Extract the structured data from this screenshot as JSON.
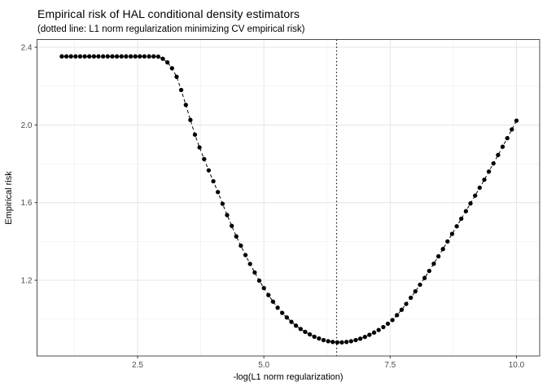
{
  "chart_data": {
    "type": "scatter",
    "title": "Empirical risk of HAL conditional density estimators",
    "subtitle": "(dotted line: L1 norm regularization minimizing CV empirical risk)",
    "xlabel": "-log(L1 norm regularization)",
    "ylabel": "Empirical risk",
    "xlim": [
      0.51,
      10.46
    ],
    "ylim": [
      0.81,
      2.44
    ],
    "x_ticks": {
      "major": [
        2.5,
        5.0,
        7.5,
        10.0
      ],
      "labels": [
        "2.5",
        "5.0",
        "7.5",
        "10.0"
      ],
      "minor": [
        1.25,
        3.75,
        6.25,
        8.75
      ]
    },
    "y_ticks": {
      "major": [
        2.4,
        2.0,
        1.6,
        1.2
      ],
      "labels": [
        "2.4",
        "2.0",
        "1.6",
        "1.2"
      ],
      "minor": [
        2.2,
        1.8,
        1.4,
        1.0
      ]
    },
    "grid": true,
    "legend": "none",
    "line_style": "dashed",
    "point_shape": "filled-circle",
    "vline": {
      "x": 6.44,
      "style": "dotted"
    },
    "series": [
      {
        "name": "empirical risk",
        "x": [
          1.0,
          1.091,
          1.182,
          1.273,
          1.364,
          1.455,
          1.545,
          1.636,
          1.727,
          1.818,
          1.909,
          2.0,
          2.091,
          2.182,
          2.273,
          2.364,
          2.455,
          2.545,
          2.636,
          2.727,
          2.818,
          2.909,
          3.0,
          3.091,
          3.182,
          3.273,
          3.364,
          3.455,
          3.545,
          3.636,
          3.727,
          3.818,
          3.909,
          4.0,
          4.091,
          4.182,
          4.273,
          4.364,
          4.455,
          4.545,
          4.636,
          4.727,
          4.818,
          4.909,
          5.0,
          5.091,
          5.182,
          5.273,
          5.364,
          5.455,
          5.545,
          5.636,
          5.727,
          5.818,
          5.909,
          6.0,
          6.091,
          6.182,
          6.273,
          6.364,
          6.455,
          6.545,
          6.636,
          6.727,
          6.818,
          6.909,
          7.0,
          7.091,
          7.182,
          7.273,
          7.364,
          7.455,
          7.545,
          7.636,
          7.727,
          7.818,
          7.909,
          8.0,
          8.091,
          8.182,
          8.273,
          8.364,
          8.455,
          8.545,
          8.636,
          8.727,
          8.818,
          8.909,
          9.0,
          9.091,
          9.182,
          9.273,
          9.364,
          9.455,
          9.545,
          9.636,
          9.727,
          9.818,
          9.909,
          10.0
        ],
        "y": [
          2.353,
          2.353,
          2.353,
          2.353,
          2.353,
          2.353,
          2.353,
          2.353,
          2.353,
          2.353,
          2.353,
          2.353,
          2.353,
          2.353,
          2.353,
          2.353,
          2.353,
          2.353,
          2.353,
          2.353,
          2.353,
          2.352,
          2.341,
          2.322,
          2.292,
          2.248,
          2.18,
          2.103,
          2.026,
          1.95,
          1.884,
          1.824,
          1.766,
          1.71,
          1.654,
          1.594,
          1.536,
          1.48,
          1.426,
          1.378,
          1.33,
          1.284,
          1.24,
          1.198,
          1.16,
          1.124,
          1.09,
          1.059,
          1.032,
          1.008,
          0.986,
          0.966,
          0.949,
          0.934,
          0.921,
          0.909,
          0.9,
          0.892,
          0.886,
          0.882,
          0.88,
          0.88,
          0.882,
          0.886,
          0.892,
          0.899,
          0.908,
          0.919,
          0.931,
          0.944,
          0.959,
          0.976,
          0.995,
          1.02,
          1.048,
          1.078,
          1.11,
          1.143,
          1.177,
          1.212,
          1.248,
          1.285,
          1.323,
          1.361,
          1.4,
          1.439,
          1.478,
          1.517,
          1.556,
          1.596,
          1.636,
          1.677,
          1.718,
          1.76,
          1.802,
          1.845,
          1.888,
          1.932,
          1.977,
          2.022
        ]
      }
    ],
    "colors": {
      "point": "#000000",
      "line": "#000000",
      "vline": "#1a1a1a",
      "grid_major": "#e4e4e4",
      "grid_minor": "#f2f2f2",
      "panel_border": "#4d4d4d",
      "tick": "#333333",
      "tick_label": "#4d4d4d",
      "panel_background": "#ffffff"
    }
  }
}
